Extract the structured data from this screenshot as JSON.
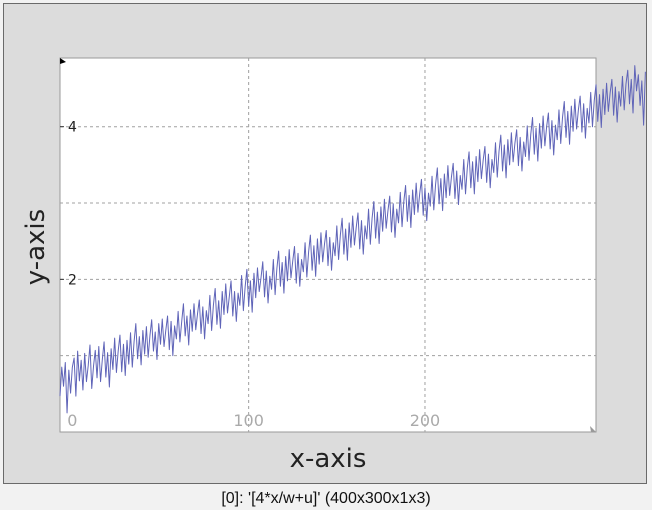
{
  "caption": "[0]: '[4*x/w+u]' (400x300x1x3)",
  "colors": {
    "window_bg": "#dcdcdc",
    "plot_bg": "#ffffff",
    "line": "#5f64b8",
    "grid": "#a0a0a0"
  },
  "chart_data": {
    "type": "line",
    "title": "",
    "xlabel": "x-axis",
    "ylabel": "y-axis",
    "xlim": [
      -7,
      297
    ],
    "ylim": [
      0,
      4.9
    ],
    "x_ticks": [
      0,
      100,
      200
    ],
    "y_ticks": [
      2,
      4
    ],
    "x_grid": [
      100,
      200
    ],
    "y_grid": [
      1,
      2,
      3,
      4
    ],
    "grid": true,
    "legend": "none",
    "series": [
      {
        "name": "",
        "x_start": -7,
        "x_step": 1,
        "values": [
          0.47,
          0.85,
          0.6,
          0.91,
          0.25,
          0.81,
          0.51,
          0.85,
          0.97,
          0.47,
          1.06,
          0.67,
          0.94,
          0.55,
          1.03,
          0.66,
          0.87,
          1.14,
          0.57,
          0.86,
          1.07,
          0.71,
          1.12,
          0.66,
          0.95,
          1.18,
          0.72,
          1.04,
          0.59,
          1.09,
          0.82,
          1.23,
          0.78,
          1.06,
          1.27,
          0.79,
          1.15,
          0.74,
          1.2,
          0.89,
          1.3,
          0.85,
          1.18,
          1.42,
          0.96,
          1.25,
          0.88,
          1.33,
          1.02,
          1.38,
          0.98,
          1.26,
          1.47,
          1.06,
          1.31,
          0.95,
          1.42,
          1.15,
          1.48,
          1.12,
          1.33,
          1.52,
          1.08,
          1.45,
          1.0,
          1.39,
          1.22,
          1.58,
          1.18,
          1.44,
          1.68,
          1.26,
          1.52,
          1.14,
          1.6,
          1.32,
          1.68,
          1.34,
          1.55,
          1.73,
          1.29,
          1.64,
          1.22,
          1.59,
          1.42,
          1.79,
          1.33,
          1.66,
          1.88,
          1.41,
          1.72,
          1.36,
          1.84,
          1.54,
          1.94,
          1.56,
          1.77,
          1.98,
          1.52,
          1.84,
          1.45,
          1.82,
          1.66,
          2.05,
          1.59,
          1.9,
          2.13,
          1.65,
          1.98,
          1.57,
          2.08,
          1.76,
          2.15,
          1.84,
          2.02,
          2.23,
          1.77,
          2.11,
          1.69,
          2.04,
          1.87,
          2.26,
          1.8,
          2.14,
          2.37,
          1.91,
          2.22,
          1.82,
          2.3,
          1.98,
          2.39,
          2.02,
          2.24,
          2.43,
          1.95,
          2.34,
          1.91,
          2.26,
          2.1,
          2.48,
          2.03,
          2.36,
          2.58,
          2.12,
          2.44,
          2.04,
          2.53,
          2.2,
          2.61,
          2.23,
          2.46,
          2.64,
          2.18,
          2.55,
          2.12,
          2.48,
          2.31,
          2.7,
          2.26,
          2.58,
          2.8,
          2.33,
          2.66,
          2.25,
          2.74,
          2.42,
          2.83,
          2.45,
          2.68,
          2.87,
          2.4,
          2.77,
          2.33,
          2.7,
          2.53,
          2.92,
          2.46,
          2.8,
          3.02,
          2.54,
          2.88,
          2.47,
          2.95,
          2.63,
          3.05,
          2.67,
          2.9,
          3.09,
          2.62,
          2.99,
          2.55,
          2.92,
          2.74,
          3.14,
          2.69,
          3.02,
          3.23,
          2.76,
          3.1,
          2.68,
          3.17,
          2.85,
          3.26,
          2.88,
          3.12,
          3.31,
          2.84,
          3.2,
          2.77,
          3.13,
          2.96,
          3.35,
          2.91,
          3.24,
          3.46,
          2.99,
          3.32,
          2.9,
          3.38,
          3.07,
          3.49,
          3.1,
          3.34,
          3.52,
          3.06,
          3.42,
          2.98,
          3.36,
          3.18,
          3.57,
          3.12,
          3.46,
          3.67,
          3.2,
          3.54,
          3.12,
          3.61,
          3.28,
          3.7,
          3.32,
          3.56,
          3.74,
          3.27,
          3.64,
          3.2,
          3.57,
          3.4,
          3.79,
          3.34,
          3.68,
          3.89,
          3.42,
          3.76,
          3.33,
          3.83,
          3.5,
          3.92,
          3.54,
          3.78,
          3.96,
          3.49,
          3.86,
          3.42,
          3.8,
          3.61,
          4.01,
          3.56,
          3.9,
          4.12,
          3.64,
          3.98,
          3.55,
          4.04,
          3.72,
          4.14,
          3.75,
          4.0,
          4.18,
          3.71,
          4.08,
          3.63,
          4.02,
          3.83,
          4.22,
          3.78,
          4.12,
          4.33,
          3.86,
          4.2,
          3.77,
          4.27,
          3.94,
          4.36,
          3.97,
          4.22,
          4.4,
          3.93,
          4.3,
          3.85,
          4.24,
          4.05,
          4.45,
          4.0,
          4.34,
          4.55,
          4.07,
          4.42,
          3.99,
          4.49,
          4.16,
          4.57,
          4.2,
          4.44,
          4.62,
          4.15,
          4.52,
          4.06,
          4.46,
          4.27,
          4.66,
          4.22,
          4.56,
          4.74,
          4.3,
          4.62,
          4.18,
          4.8,
          4.47,
          4.68,
          4.28,
          4.6,
          4.02,
          4.72
        ]
      }
    ]
  }
}
